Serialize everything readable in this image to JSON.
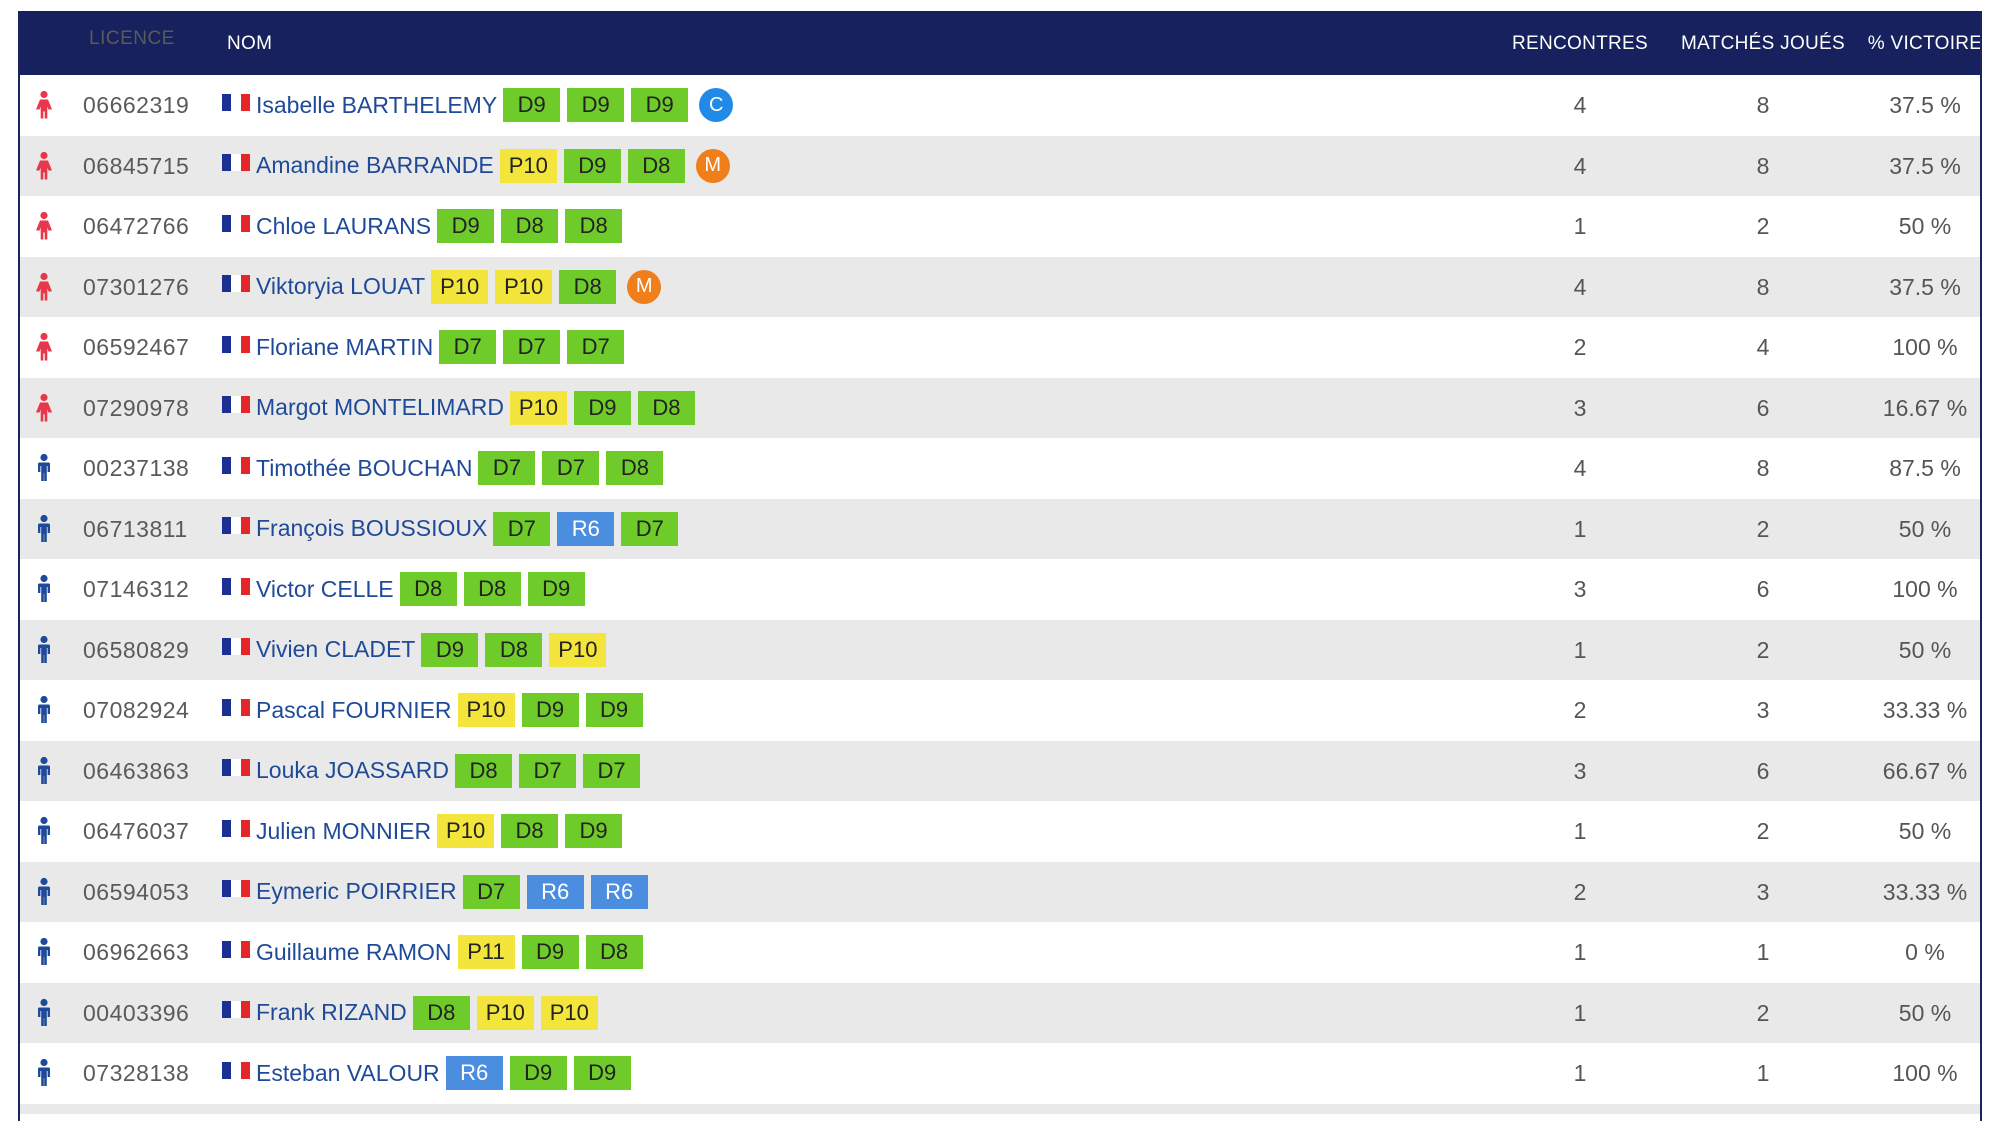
{
  "header": {
    "licence": "LICENCE",
    "nom": "NOM",
    "rencontres": "RENCONTRES",
    "matches": "MATCHÉS JOUÉS",
    "victoire": "% VICTOIRE"
  },
  "colors": {
    "header_bg": "#17215e",
    "female_icon": "#e8374a",
    "male_icon": "#1f4a99",
    "badge_D": "#6fcb2a",
    "badge_P": "#f3e53c",
    "badge_R": "#4b8ee0",
    "captain_C": "#2189e6",
    "captain_M": "#f07e1a"
  },
  "rows": [
    {
      "gender": "female",
      "licence": "06662319",
      "name": "Isabelle BARTHELEMY",
      "ranks": [
        "D9",
        "D9",
        "D9"
      ],
      "role": "C",
      "rencontres": "4",
      "matches": "8",
      "victoire": "37.5 %"
    },
    {
      "gender": "female",
      "licence": "06845715",
      "name": "Amandine BARRANDE",
      "ranks": [
        "P10",
        "D9",
        "D8"
      ],
      "role": "M",
      "rencontres": "4",
      "matches": "8",
      "victoire": "37.5 %"
    },
    {
      "gender": "female",
      "licence": "06472766",
      "name": "Chloe LAURANS",
      "ranks": [
        "D9",
        "D8",
        "D8"
      ],
      "role": "",
      "rencontres": "1",
      "matches": "2",
      "victoire": "50 %"
    },
    {
      "gender": "female",
      "licence": "07301276",
      "name": "Viktoryia LOUAT",
      "ranks": [
        "P10",
        "P10",
        "D8"
      ],
      "role": "M",
      "rencontres": "4",
      "matches": "8",
      "victoire": "37.5 %"
    },
    {
      "gender": "female",
      "licence": "06592467",
      "name": "Floriane MARTIN",
      "ranks": [
        "D7",
        "D7",
        "D7"
      ],
      "role": "",
      "rencontres": "2",
      "matches": "4",
      "victoire": "100 %"
    },
    {
      "gender": "female",
      "licence": "07290978",
      "name": "Margot MONTELIMARD",
      "ranks": [
        "P10",
        "D9",
        "D8"
      ],
      "role": "",
      "rencontres": "3",
      "matches": "6",
      "victoire": "16.67 %"
    },
    {
      "gender": "male",
      "licence": "00237138",
      "name": "Timothée BOUCHAN",
      "ranks": [
        "D7",
        "D7",
        "D8"
      ],
      "role": "",
      "rencontres": "4",
      "matches": "8",
      "victoire": "87.5 %"
    },
    {
      "gender": "male",
      "licence": "06713811",
      "name": "François BOUSSIOUX",
      "ranks": [
        "D7",
        "R6",
        "D7"
      ],
      "role": "",
      "rencontres": "1",
      "matches": "2",
      "victoire": "50 %"
    },
    {
      "gender": "male",
      "licence": "07146312",
      "name": "Victor CELLE",
      "ranks": [
        "D8",
        "D8",
        "D9"
      ],
      "role": "",
      "rencontres": "3",
      "matches": "6",
      "victoire": "100 %"
    },
    {
      "gender": "male",
      "licence": "06580829",
      "name": "Vivien CLADET",
      "ranks": [
        "D9",
        "D8",
        "P10"
      ],
      "role": "",
      "rencontres": "1",
      "matches": "2",
      "victoire": "50 %"
    },
    {
      "gender": "male",
      "licence": "07082924",
      "name": "Pascal FOURNIER",
      "ranks": [
        "P10",
        "D9",
        "D9"
      ],
      "role": "",
      "rencontres": "2",
      "matches": "3",
      "victoire": "33.33 %"
    },
    {
      "gender": "male",
      "licence": "06463863",
      "name": "Louka JOASSARD",
      "ranks": [
        "D8",
        "D7",
        "D7"
      ],
      "role": "",
      "rencontres": "3",
      "matches": "6",
      "victoire": "66.67 %"
    },
    {
      "gender": "male",
      "licence": "06476037",
      "name": "Julien MONNIER",
      "ranks": [
        "P10",
        "D8",
        "D9"
      ],
      "role": "",
      "rencontres": "1",
      "matches": "2",
      "victoire": "50 %"
    },
    {
      "gender": "male",
      "licence": "06594053",
      "name": "Eymeric POIRRIER",
      "ranks": [
        "D7",
        "R6",
        "R6"
      ],
      "role": "",
      "rencontres": "2",
      "matches": "3",
      "victoire": "33.33 %"
    },
    {
      "gender": "male",
      "licence": "06962663",
      "name": "Guillaume RAMON",
      "ranks": [
        "P11",
        "D9",
        "D8"
      ],
      "role": "",
      "rencontres": "1",
      "matches": "1",
      "victoire": "0 %"
    },
    {
      "gender": "male",
      "licence": "00403396",
      "name": "Frank RIZAND",
      "ranks": [
        "D8",
        "P10",
        "P10"
      ],
      "role": "",
      "rencontres": "1",
      "matches": "2",
      "victoire": "50 %"
    },
    {
      "gender": "male",
      "licence": "07328138",
      "name": "Esteban VALOUR",
      "ranks": [
        "R6",
        "D9",
        "D9"
      ],
      "role": "",
      "rencontres": "1",
      "matches": "1",
      "victoire": "100 %"
    }
  ]
}
